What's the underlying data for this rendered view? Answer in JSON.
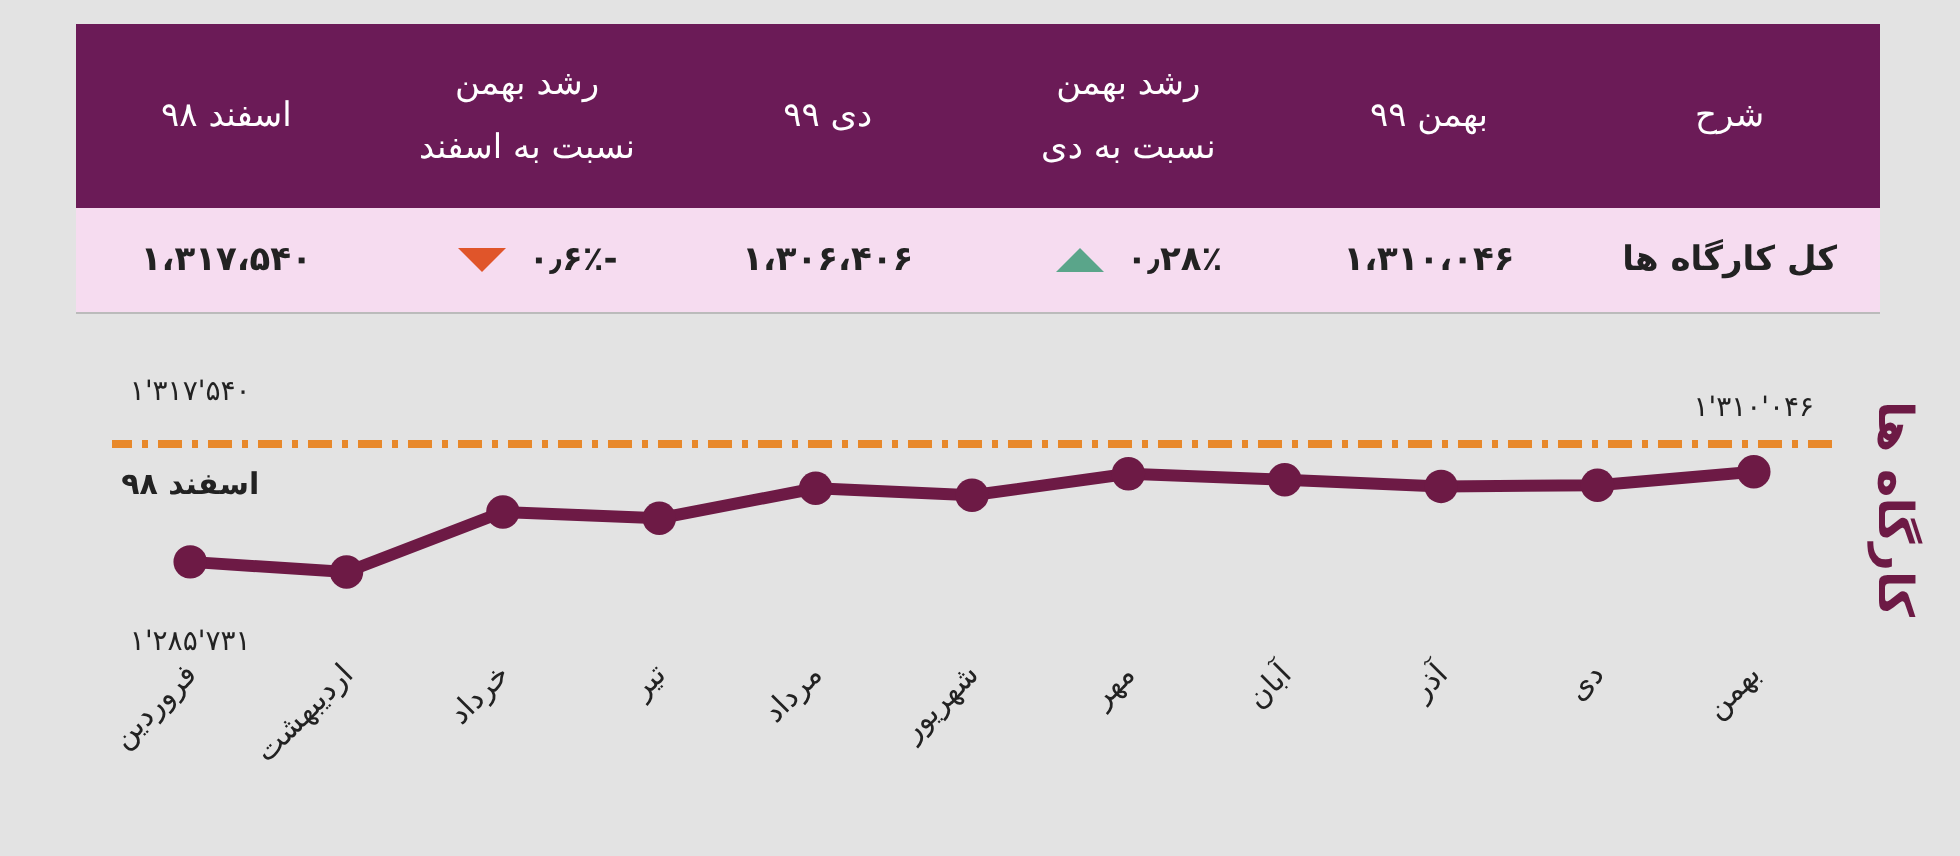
{
  "chart_data": {
    "type": "line",
    "ylabel": "کارگاه ها",
    "categories": [
      "فروردین",
      "اردیبهشت",
      "خرداد",
      "تیر",
      "مرداد",
      "شهریور",
      "مهر",
      "آبان",
      "آذر",
      "دی",
      "بهمن"
    ],
    "series": [
      {
        "color": "#6d1a45",
        "values": [
          1285731,
          1283000,
          1299200,
          1297500,
          1305600,
          1303700,
          1309500,
          1307900,
          1306100,
          1306406,
          1310046
        ],
        "value_labels": [
          "۱'۲۸۵'۷۳۱",
          null,
          null,
          null,
          null,
          null,
          null,
          null,
          null,
          null,
          "۱'۳۱۰'۰۴۶"
        ]
      }
    ],
    "marker": "circle",
    "line_style": "solid",
    "tick_labels": "x",
    "ref_lines": [
      {
        "axis": "y",
        "value": 1317540,
        "label": "اسفند ۹۸",
        "color": "#e8892b",
        "line_style": "dashed"
      }
    ],
    "annotations": [
      "شرح",
      "بهمن ۹۹",
      "رشد بهمن نسبت به دی",
      "دی ۹۹",
      "رشد بهمن نسبت به اسفند",
      "اسفند ۹۸",
      "کل کارگاه ها",
      "۱،۳۱۰،۰۴۶",
      "۰٫۲۸٪",
      "۱،۳۰۶،۴۰۶",
      "-۰٫۶٪",
      "۱،۳۱۷،۵۴۰",
      "۱'۳۱۷'۵۴۰"
    ]
  }
}
